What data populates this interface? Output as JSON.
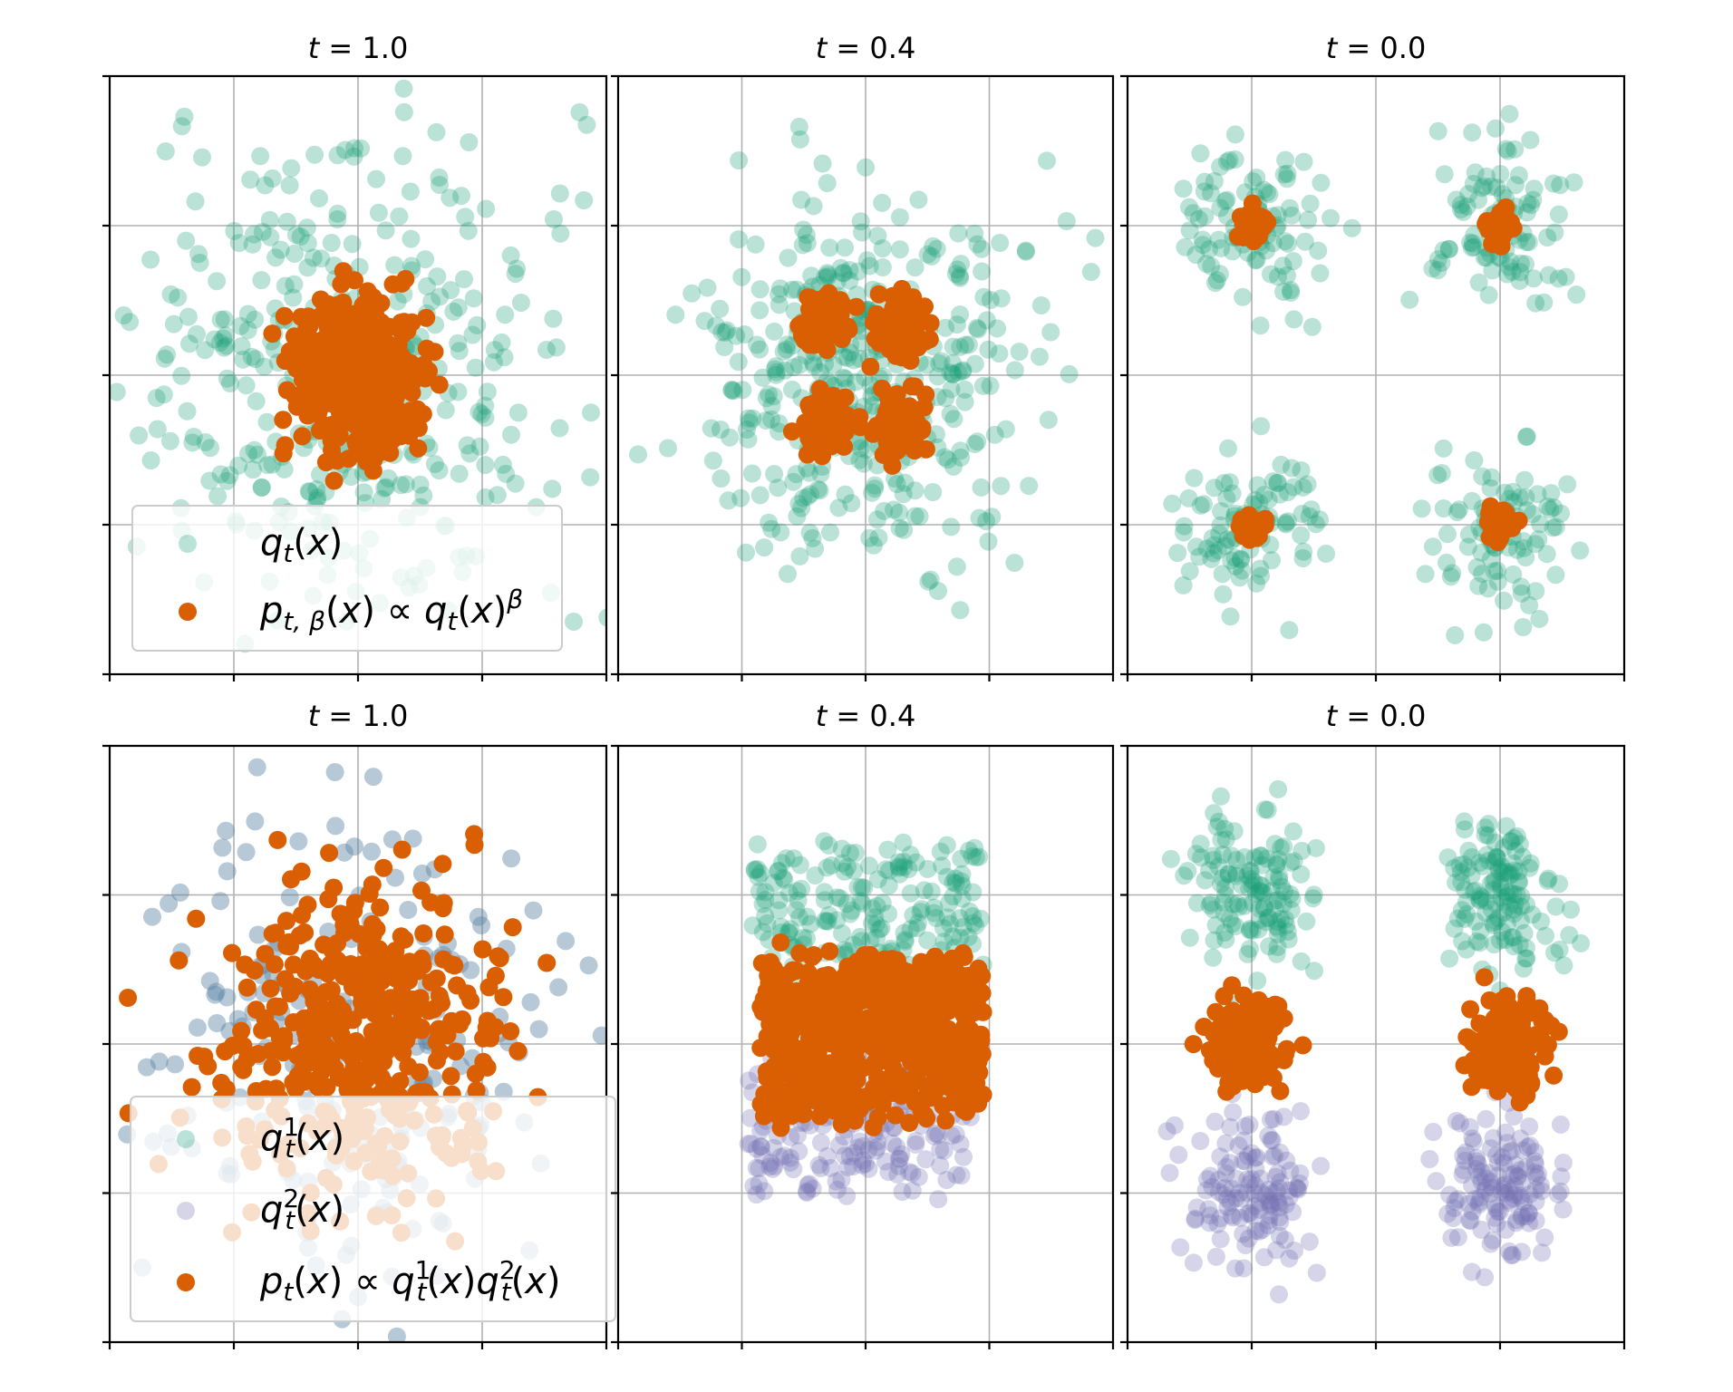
{
  "colors": {
    "q_green": "#1b9e77",
    "q2_purple": "#7570b3",
    "q1_init_blue": "#5f87a6",
    "p_orange": "#d95f02"
  },
  "chart_data": [
    {
      "type": "scatter",
      "title": "t = 1.0",
      "title_parts": {
        "var": "t",
        "eq": " = ",
        "val": "1.0"
      },
      "xlim": [
        -2,
        2
      ],
      "ylim": [
        -2,
        2
      ],
      "grid": true,
      "legend": {
        "placement": "lower-left",
        "entries": [
          {
            "label": "q_t(x)",
            "color": "#1b9e77",
            "alpha": 0.3
          },
          {
            "label": "p_{t,β}(x) ∝ q_t(x)^β",
            "color": "#d95f02",
            "alpha": 1
          }
        ]
      },
      "series": [
        {
          "label": "q_t(x)",
          "color": "#1b9e77",
          "alpha": 0.3,
          "dist": "gauss",
          "centers": [
            [
              0,
              0
            ]
          ],
          "sigma": 0.85,
          "n": 380
        },
        {
          "label": "p_{t,β}(x) ∝ q_t(x)^β",
          "color": "#d95f02",
          "alpha": 1,
          "dist": "gauss",
          "centers": [
            [
              0,
              0
            ]
          ],
          "sigma": 0.25,
          "n": 520
        }
      ]
    },
    {
      "type": "scatter",
      "title": "t = 0.4",
      "title_parts": {
        "var": "t",
        "eq": " = ",
        "val": "0.4"
      },
      "xlim": [
        -2,
        2
      ],
      "ylim": [
        -2,
        2
      ],
      "grid": true,
      "series": [
        {
          "label": "q_t(x)",
          "color": "#1b9e77",
          "alpha": 0.3,
          "dist": "gauss",
          "centers": [
            [
              -0.4,
              0.4
            ],
            [
              0.4,
              0.4
            ],
            [
              -0.4,
              -0.4
            ],
            [
              0.4,
              -0.4
            ]
          ],
          "sigma": 0.48,
          "n": 400
        },
        {
          "label": "p_{t,β}(x) ∝ q_t(x)^β",
          "color": "#d95f02",
          "alpha": 1,
          "dist": "gauss",
          "centers": [
            [
              -0.35,
              0.35
            ],
            [
              0.3,
              0.35
            ],
            [
              -0.3,
              -0.35
            ],
            [
              0.3,
              -0.35
            ]
          ],
          "sigma": 0.1,
          "n": 320
        }
      ]
    },
    {
      "type": "scatter",
      "title": "t = 0.0",
      "title_parts": {
        "var": "t",
        "eq": " = ",
        "val": "0.0"
      },
      "xlim": [
        -2,
        2
      ],
      "ylim": [
        -2,
        2
      ],
      "grid": true,
      "series": [
        {
          "label": "q_t(x)",
          "color": "#1b9e77",
          "alpha": 0.3,
          "dist": "gauss",
          "centers": [
            [
              -1,
              1
            ],
            [
              1,
              1
            ],
            [
              -1,
              -1
            ],
            [
              1,
              -1
            ]
          ],
          "sigma": 0.28,
          "n": 380
        },
        {
          "label": "p_{t,β}(x) ∝ q_t(x)^β",
          "color": "#d95f02",
          "alpha": 1,
          "dist": "gauss",
          "centers": [
            [
              -1,
              1
            ],
            [
              1,
              1
            ],
            [
              -1,
              -1
            ],
            [
              1,
              -1
            ]
          ],
          "sigma": 0.05,
          "n": 160
        }
      ]
    },
    {
      "type": "scatter",
      "title": "t = 1.0",
      "title_parts": {
        "var": "t",
        "eq": " = ",
        "val": "1.0"
      },
      "xlim": [
        -2,
        2
      ],
      "ylim": [
        -2,
        2
      ],
      "grid": true,
      "legend": {
        "placement": "lower-left",
        "entries": [
          {
            "label": "q_t^1(x)",
            "color": "#1b9e77",
            "alpha": 0.3
          },
          {
            "label": "q_t^2(x)",
            "color": "#7570b3",
            "alpha": 0.3
          },
          {
            "label": "p_t(x) ∝ q_t^1(x) q_t^2(x)",
            "color": "#d95f02",
            "alpha": 1
          }
        ]
      },
      "series": [
        {
          "label": "q_t^1(x)",
          "color": "#5f87a6",
          "alpha": 0.45,
          "dist": "gauss",
          "centers": [
            [
              0,
              0
            ]
          ],
          "sigma": 0.8,
          "n": 220
        },
        {
          "label": "p_t(x) ∝ q_t^1(x) q_t^2(x)",
          "color": "#d95f02",
          "alpha": 1,
          "dist": "gauss",
          "centers": [
            [
              0,
              0
            ]
          ],
          "sigma": 0.55,
          "n": 420
        }
      ]
    },
    {
      "type": "scatter",
      "title": "t = 0.4",
      "title_parts": {
        "var": "t",
        "eq": " = ",
        "val": "0.4"
      },
      "xlim": [
        -2,
        2
      ],
      "ylim": [
        -2,
        2
      ],
      "grid": true,
      "series": [
        {
          "label": "q_t^1(x)",
          "color": "#1b9e77",
          "alpha": 0.3,
          "dist": "band",
          "x": [
            -0.95,
            0.95
          ],
          "y": [
            0.5,
            1.3
          ],
          "n": 180
        },
        {
          "label": "q_t^2(x)",
          "color": "#7570b3",
          "alpha": 0.3,
          "dist": "band",
          "x": [
            -0.95,
            0.85
          ],
          "y": [
            -1.0,
            -0.15
          ],
          "n": 180
        },
        {
          "label": "p_t(x) ∝ q_t^1(x) q_t^2(x)",
          "color": "#d95f02",
          "alpha": 1,
          "dist": "band",
          "x": [
            -0.85,
            0.95
          ],
          "y": [
            -0.45,
            0.55
          ],
          "n": 620
        }
      ]
    },
    {
      "type": "scatter",
      "title": "t = 0.0",
      "title_parts": {
        "var": "t",
        "eq": " = ",
        "val": "0.0"
      },
      "xlim": [
        -2,
        2
      ],
      "ylim": [
        -2,
        2
      ],
      "grid": true,
      "series": [
        {
          "label": "q_t^1(x)",
          "color": "#1b9e77",
          "alpha": 0.3,
          "dist": "gauss",
          "centers": [
            [
              -1,
              1
            ],
            [
              1,
              1
            ]
          ],
          "sigma": 0.25,
          "n": 260
        },
        {
          "label": "q_t^2(x)",
          "color": "#7570b3",
          "alpha": 0.3,
          "dist": "gauss",
          "centers": [
            [
              -1,
              -1
            ],
            [
              1,
              -1
            ]
          ],
          "sigma": 0.25,
          "n": 260
        },
        {
          "label": "p_t(x) ∝ q_t^1(x) q_t^2(x)",
          "color": "#d95f02",
          "alpha": 1,
          "dist": "gauss",
          "centers": [
            [
              -1.05,
              0
            ],
            [
              1.05,
              0
            ]
          ],
          "sigma": 0.15,
          "n": 340
        }
      ]
    }
  ]
}
